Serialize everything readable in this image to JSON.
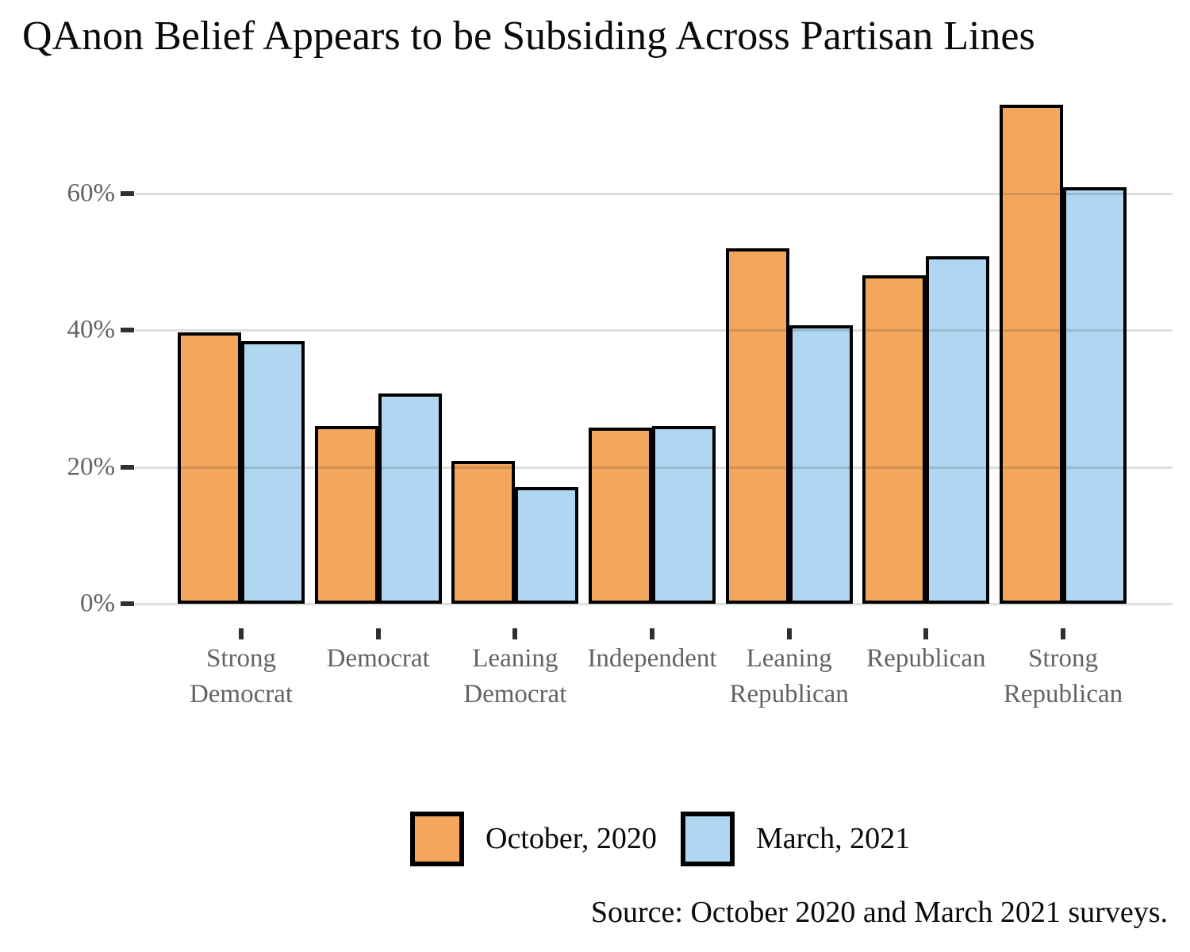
{
  "chart_data": {
    "type": "bar",
    "title": "QAnon Belief Appears to be Subsiding Across Partisan Lines",
    "categories": [
      "Strong\nDemocrat",
      "Democrat",
      "Leaning\nDemocrat",
      "Independent",
      "Leaning\nRepublican",
      "Republican",
      "Strong\nRepublican"
    ],
    "series": [
      {
        "name": "October, 2020",
        "color": "#F3A75C",
        "values": [
          39.7,
          26.0,
          20.9,
          25.8,
          52.0,
          48.1,
          73.0
        ]
      },
      {
        "name": "March, 2021",
        "color": "#AFD7F2",
        "values": [
          38.4,
          30.7,
          17.1,
          26.0,
          40.7,
          50.8,
          60.9
        ]
      }
    ],
    "ylabel": "",
    "xlabel": "",
    "ytick_labels": [
      "0%",
      "20%",
      "40%",
      "60%"
    ],
    "ytick_values": [
      0,
      20,
      40,
      60
    ],
    "ylim": [
      0,
      75
    ],
    "grid": "horizontal",
    "legend_position": "bottom",
    "bar_border_color": "#000000",
    "grid_color": "#dedede",
    "axis_text_color": "#636363",
    "source": "Source: October 2020 and March 2021 surveys."
  }
}
